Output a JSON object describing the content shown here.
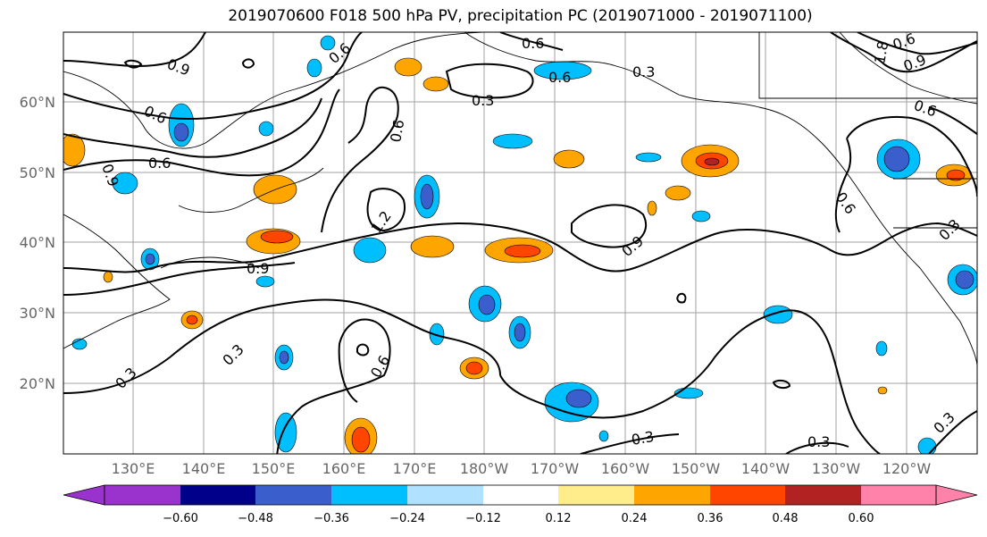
{
  "title": "2019070600 F018 500 hPa PV, precipitation PC (2019071000 - 2019071100)",
  "map": {
    "lat_labels": [
      "60°N",
      "50°N",
      "40°N",
      "30°N",
      "20°N"
    ],
    "lon_labels": [
      "130°E",
      "140°E",
      "150°E",
      "160°E",
      "170°E",
      "180°W",
      "170°W",
      "160°W",
      "150°W",
      "140°W",
      "130°W",
      "120°W"
    ],
    "contour_labels": [
      "0.9",
      "0.6",
      "0.6",
      "0.6",
      "0.6",
      "0.3",
      "0.6",
      "0.3",
      "0.9",
      "0.6",
      "1.2",
      "0.9",
      "0.9",
      "0.6",
      "0.6",
      "0.3",
      "0.3",
      "0.6",
      "0.3",
      "0.3",
      "0.3",
      "0.3",
      "0.9",
      "0.6",
      "1.8"
    ]
  },
  "colorbar": {
    "ticks": [
      "−0.60",
      "−0.48",
      "−0.36",
      "−0.24",
      "−0.12",
      "0.12",
      "0.24",
      "0.36",
      "0.48",
      "0.60"
    ],
    "colors": [
      "#9a32cd",
      "#00008b",
      "#3a5fcd",
      "#00bfff",
      "#b0e2ff",
      "#ffffff",
      "#ffec8b",
      "#ffa500",
      "#ff4500",
      "#b22222",
      "#ff82ab"
    ]
  }
}
